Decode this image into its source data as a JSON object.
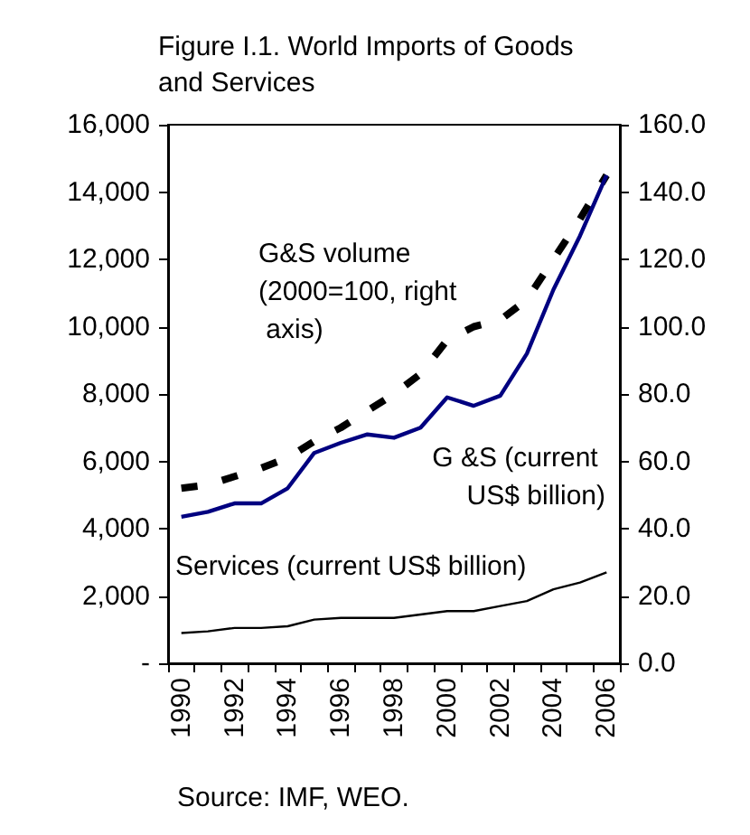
{
  "chart_data": {
    "type": "line",
    "title": "Figure I.1. World Imports of Goods and Services",
    "categories": [
      "1990",
      null,
      "1992",
      null,
      "1994",
      null,
      "1996",
      null,
      "1998",
      null,
      "2000",
      null,
      "2002",
      null,
      "2004",
      null,
      "2006"
    ],
    "series": [
      {
        "name": "G&S volume (2000=100, right axis)",
        "color": "#000000",
        "axis": "y2",
        "line_style": "dashed",
        "values": [
          52,
          53,
          55.5,
          58,
          61,
          66,
          70,
          75,
          80,
          86,
          96,
          100,
          102,
          108,
          120,
          132,
          145
        ]
      },
      {
        "name": "G &S (current US$ billion)",
        "color": "#000080",
        "line_style": "solid",
        "values": [
          4350,
          4500,
          4750,
          4750,
          5200,
          6250,
          6550,
          6800,
          6700,
          7000,
          7900,
          7650,
          7950,
          9200,
          11100,
          12700,
          14500
        ]
      },
      {
        "name": "Services (current US$ billion)",
        "color": "#000000",
        "line_style": "solid",
        "values": [
          900,
          950,
          1050,
          1050,
          1100,
          1300,
          1350,
          1350,
          1350,
          1450,
          1550,
          1550,
          1700,
          1850,
          2200,
          2400,
          2700
        ]
      }
    ],
    "ylim": [
      0,
      16000
    ],
    "yticks": [
      {
        "value": 0,
        "label": "-"
      },
      {
        "value": 2000,
        "label": "2,000"
      },
      {
        "value": 4000,
        "label": "4,000"
      },
      {
        "value": 6000,
        "label": "6,000"
      },
      {
        "value": 8000,
        "label": "8,000"
      },
      {
        "value": 10000,
        "label": "10,000"
      },
      {
        "value": 12000,
        "label": "12,000"
      },
      {
        "value": 14000,
        "label": "14,000"
      },
      {
        "value": 16000,
        "label": "16,000"
      }
    ],
    "y2lim": [
      0,
      160
    ],
    "y2ticks": [
      {
        "value": 0,
        "label": "0.0"
      },
      {
        "value": 20,
        "label": "20.0"
      },
      {
        "value": 40,
        "label": "40.0"
      },
      {
        "value": 60,
        "label": "60.0"
      },
      {
        "value": 80,
        "label": "80.0"
      },
      {
        "value": 100,
        "label": "100.0"
      },
      {
        "value": 120,
        "label": "120.0"
      },
      {
        "value": 140,
        "label": "140.0"
      },
      {
        "value": 160,
        "label": "160.0"
      }
    ],
    "annotations": [
      "Source: IMF, WEO."
    ],
    "grid": false,
    "legend": false,
    "marker": "none"
  }
}
